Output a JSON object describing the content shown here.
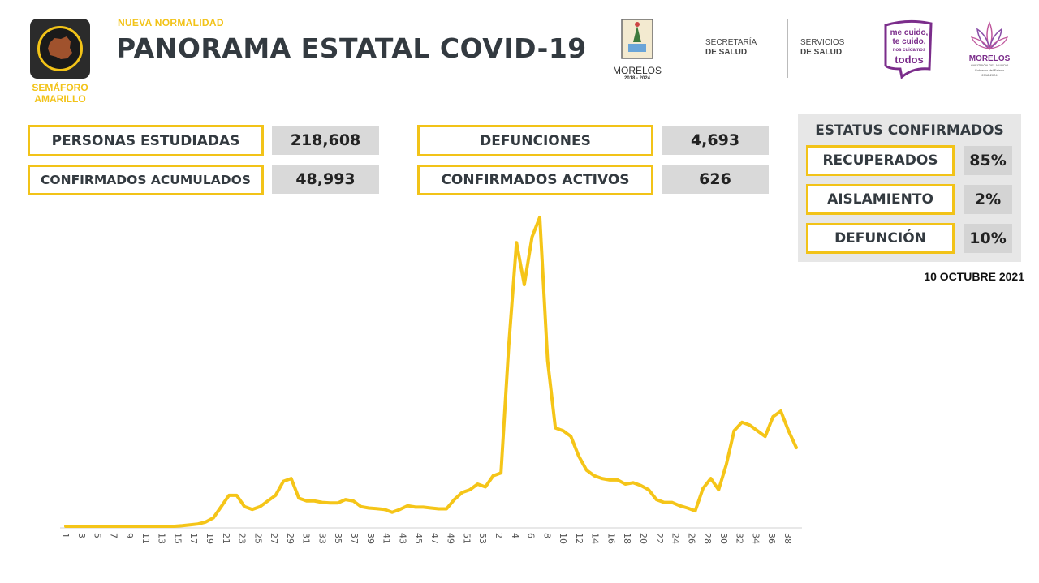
{
  "header": {
    "semaforo_caption_1": "SEMÁFORO",
    "semaforo_caption_2": "AMARILLO",
    "subtitle": "NUEVA NORMALIDAD",
    "title": "PANORAMA ESTATAL COVID-19",
    "logo_morelos_name": "MORELOS",
    "logo_morelos_years": "2018 - 2024",
    "org1_line1": "SECRETARÍA",
    "org1_line2": "DE SALUD",
    "org2_line1": "SERVICIOS",
    "org2_line2": "DE SALUD",
    "slogan_1": "me cuido,",
    "slogan_2": "te cuido,",
    "slogan_3": "nos cuidamos",
    "slogan_4": "todos",
    "logo_right_name": "MORELOS",
    "logo_right_sub": "ANFITRIÓN DEL MUNDO",
    "logo_right_gov": "Gobierno del Estado",
    "logo_right_years": "2018-2024"
  },
  "stats": {
    "personas_label": "PERSONAS ESTUDIADAS",
    "personas_value": "218,608",
    "confirmados_label": "CONFIRMADOS ACUMULADOS",
    "confirmados_value": "48,993",
    "defunciones_label": "DEFUNCIONES",
    "defunciones_value": "4,693",
    "activos_label": "CONFIRMADOS ACTIVOS",
    "activos_value": "626"
  },
  "status": {
    "title": "ESTATUS CONFIRMADOS",
    "recuperados_label": "RECUPERADOS",
    "recuperados_value": "85%",
    "aislamiento_label": "AISLAMIENTO",
    "aislamiento_value": "2%",
    "defuncion_label": "DEFUNCIÓN",
    "defuncion_value": "10%"
  },
  "date": "10 OCTUBRE 2021",
  "colors": {
    "accent": "#f2c318",
    "line": "#f5c518",
    "title": "#333a40",
    "value_bg": "#d9d9d9"
  },
  "chart_data": {
    "type": "line",
    "title": "",
    "xlabel": "",
    "ylabel": "",
    "grid": false,
    "tick_labels": [
      "1",
      "3",
      "5",
      "7",
      "9",
      "11",
      "13",
      "15",
      "17",
      "19",
      "21",
      "23",
      "25",
      "27",
      "29",
      "31",
      "33",
      "35",
      "37",
      "39",
      "41",
      "43",
      "45",
      "47",
      "49",
      "51",
      "53",
      "2",
      "4",
      "6",
      "8",
      "10",
      "12",
      "14",
      "16",
      "18",
      "20",
      "22",
      "24",
      "26",
      "28",
      "30",
      "32",
      "34",
      "36",
      "38"
    ],
    "values": [
      0,
      0,
      0,
      0,
      0,
      0,
      0,
      0,
      0,
      0,
      0,
      0,
      0,
      0,
      0,
      0.2,
      0.5,
      0.8,
      1.5,
      3,
      7,
      11,
      11,
      7,
      6,
      7,
      9,
      11,
      16,
      17,
      10,
      9,
      9,
      8.5,
      8.3,
      8.3,
      9.5,
      9,
      7,
      6.5,
      6.3,
      6,
      5,
      6,
      7.3,
      6.8,
      6.8,
      6.5,
      6.2,
      6.2,
      9.5,
      12,
      13,
      15,
      14,
      18,
      19,
      64,
      101,
      86,
      103,
      110,
      59,
      35,
      34,
      32,
      25,
      20,
      18,
      17,
      16.5,
      16.5,
      15,
      15.5,
      14.5,
      13,
      9.5,
      8.5,
      8.5,
      7.3,
      6.5,
      5.5,
      13.5,
      17,
      13,
      22,
      34,
      37,
      36,
      34,
      32,
      39,
      41,
      34,
      28
    ]
  }
}
